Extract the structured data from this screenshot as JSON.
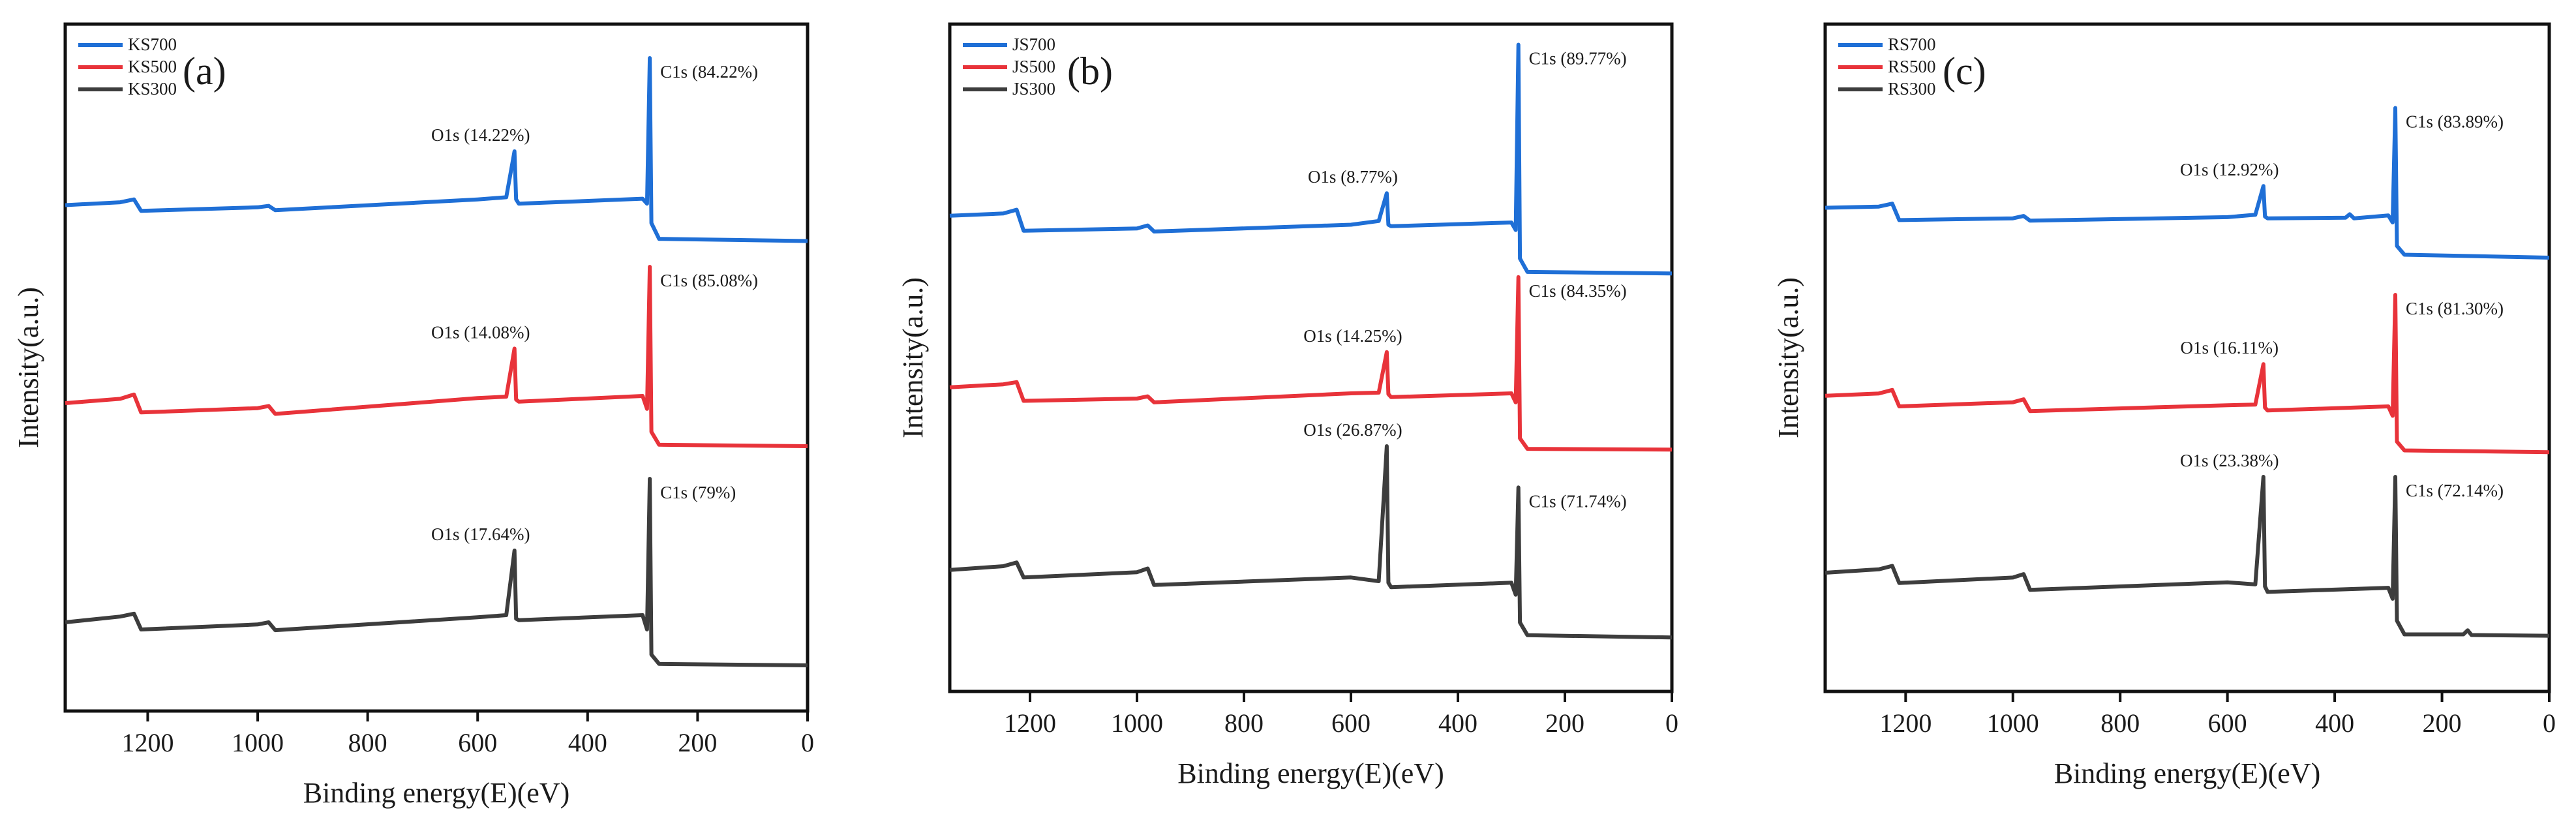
{
  "chart_data": [
    {
      "type": "line",
      "panel_label": "(a)",
      "xlabel": "Binding energy(E)(eV)",
      "ylabel": "Intensity(a.u.)",
      "xlim": [
        1350,
        0
      ],
      "x_ticks": [
        1200,
        1000,
        800,
        600,
        400,
        200,
        0
      ],
      "x_tick_labels": [
        "1200",
        "1000",
        "800",
        "600",
        "400",
        "200",
        "0"
      ],
      "y_axis_units": "arbitrary (stacked, offset curves)",
      "legend_position": "top-left",
      "series": [
        {
          "name": "KS700",
          "color": "#1f6fd6",
          "points": [
            [
              1350,
              0.55
            ],
            [
              1250,
              0.59
            ],
            [
              1225,
              0.63
            ],
            [
              1212,
              0.47
            ],
            [
              1000,
              0.52
            ],
            [
              980,
              0.54
            ],
            [
              968,
              0.48
            ],
            [
              600,
              0.63
            ],
            [
              548,
              0.66
            ],
            [
              533,
              1.3
            ],
            [
              530,
              0.63
            ],
            [
              525,
              0.57
            ],
            [
              300,
              0.64
            ],
            [
              292,
              0.57
            ],
            [
              287,
              2.6
            ],
            [
              284,
              0.3
            ],
            [
              270,
              0.08
            ],
            [
              0,
              0.05
            ]
          ],
          "annotations": [
            {
              "text": "O1s (14.22%)",
              "x": 533
            },
            {
              "text": "C1s (84.22%)",
              "x": 287
            }
          ]
        },
        {
          "name": "KS500",
          "color": "#e8333a",
          "points": [
            [
              1350,
              0.7
            ],
            [
              1250,
              0.76
            ],
            [
              1225,
              0.82
            ],
            [
              1212,
              0.57
            ],
            [
              1000,
              0.63
            ],
            [
              980,
              0.66
            ],
            [
              968,
              0.55
            ],
            [
              600,
              0.77
            ],
            [
              548,
              0.79
            ],
            [
              533,
              1.46
            ],
            [
              530,
              0.75
            ],
            [
              525,
              0.72
            ],
            [
              300,
              0.8
            ],
            [
              292,
              0.62
            ],
            [
              287,
              2.6
            ],
            [
              284,
              0.3
            ],
            [
              270,
              0.12
            ],
            [
              0,
              0.1
            ]
          ],
          "annotations": [
            {
              "text": "O1s (14.08%)",
              "x": 533
            },
            {
              "text": "C1s (85.08%)",
              "x": 287
            }
          ]
        },
        {
          "name": "KS300",
          "color": "#3d3d3d",
          "points": [
            [
              1350,
              0.6
            ],
            [
              1250,
              0.68
            ],
            [
              1225,
              0.72
            ],
            [
              1212,
              0.5
            ],
            [
              1000,
              0.57
            ],
            [
              980,
              0.6
            ],
            [
              968,
              0.49
            ],
            [
              600,
              0.67
            ],
            [
              548,
              0.7
            ],
            [
              533,
              1.6
            ],
            [
              530,
              0.65
            ],
            [
              525,
              0.63
            ],
            [
              300,
              0.7
            ],
            [
              292,
              0.5
            ],
            [
              287,
              2.6
            ],
            [
              284,
              0.15
            ],
            [
              270,
              0.02
            ],
            [
              0,
              0.0
            ]
          ],
          "annotations": [
            {
              "text": "O1s (17.64%)",
              "x": 533
            },
            {
              "text": "C1s (79%)",
              "x": 287
            }
          ]
        }
      ]
    },
    {
      "type": "line",
      "panel_label": "(b)",
      "xlabel": "Binding energy(E)(eV)",
      "ylabel": "Intensity(a.u.)",
      "xlim": [
        1350,
        0
      ],
      "x_ticks": [
        1200,
        1000,
        800,
        600,
        400,
        200,
        0
      ],
      "x_tick_labels": [
        "1200",
        "1000",
        "800",
        "600",
        "400",
        "200",
        "0"
      ],
      "y_axis_units": "arbitrary (stacked, offset curves)",
      "legend_position": "top-left",
      "series": [
        {
          "name": "JS700",
          "color": "#1f6fd6",
          "points": [
            [
              1350,
              0.82
            ],
            [
              1250,
              0.85
            ],
            [
              1225,
              0.9
            ],
            [
              1212,
              0.62
            ],
            [
              1000,
              0.65
            ],
            [
              980,
              0.69
            ],
            [
              968,
              0.61
            ],
            [
              600,
              0.7
            ],
            [
              548,
              0.75
            ],
            [
              533,
              1.12
            ],
            [
              530,
              0.7
            ],
            [
              525,
              0.68
            ],
            [
              300,
              0.73
            ],
            [
              292,
              0.63
            ],
            [
              287,
              3.1
            ],
            [
              284,
              0.25
            ],
            [
              270,
              0.07
            ],
            [
              0,
              0.05
            ]
          ],
          "annotations": [
            {
              "text": "O1s (8.77%)",
              "x": 533
            },
            {
              "text": "C1s (89.77%)",
              "x": 287
            }
          ]
        },
        {
          "name": "JS500",
          "color": "#e8333a",
          "points": [
            [
              1350,
              0.88
            ],
            [
              1250,
              0.92
            ],
            [
              1225,
              0.95
            ],
            [
              1212,
              0.7
            ],
            [
              1000,
              0.73
            ],
            [
              980,
              0.76
            ],
            [
              968,
              0.68
            ],
            [
              600,
              0.8
            ],
            [
              548,
              0.81
            ],
            [
              533,
              1.35
            ],
            [
              530,
              0.79
            ],
            [
              525,
              0.75
            ],
            [
              300,
              0.8
            ],
            [
              292,
              0.68
            ],
            [
              287,
              2.35
            ],
            [
              284,
              0.2
            ],
            [
              270,
              0.06
            ],
            [
              0,
              0.05
            ]
          ],
          "annotations": [
            {
              "text": "O1s (14.25%)",
              "x": 533
            },
            {
              "text": "C1s (84.35%)",
              "x": 287
            }
          ]
        },
        {
          "name": "JS300",
          "color": "#3d3d3d",
          "points": [
            [
              1350,
              0.95
            ],
            [
              1250,
              1.0
            ],
            [
              1225,
              1.05
            ],
            [
              1212,
              0.85
            ],
            [
              1000,
              0.92
            ],
            [
              980,
              0.97
            ],
            [
              968,
              0.75
            ],
            [
              600,
              0.85
            ],
            [
              548,
              0.8
            ],
            [
              533,
              2.6
            ],
            [
              530,
              0.78
            ],
            [
              525,
              0.72
            ],
            [
              300,
              0.78
            ],
            [
              292,
              0.62
            ],
            [
              287,
              2.05
            ],
            [
              284,
              0.25
            ],
            [
              270,
              0.08
            ],
            [
              0,
              0.05
            ]
          ],
          "annotations": [
            {
              "text": "O1s (26.87%)",
              "x": 533
            },
            {
              "text": "C1s (71.74%)",
              "x": 287
            }
          ]
        }
      ]
    },
    {
      "type": "line",
      "panel_label": "(c)",
      "xlabel": "Binding energy(E)(eV)",
      "ylabel": "Intensity(a.u.)",
      "xlim": [
        1350,
        0
      ],
      "x_ticks": [
        1200,
        1000,
        800,
        600,
        400,
        200,
        0
      ],
      "x_tick_labels": [
        "1200",
        "1000",
        "800",
        "600",
        "400",
        "200",
        "0"
      ],
      "y_axis_units": "arbitrary (stacked, offset curves)",
      "legend_position": "top-left",
      "series": [
        {
          "name": "RS700",
          "color": "#1f6fd6",
          "points": [
            [
              1350,
              0.85
            ],
            [
              1250,
              0.87
            ],
            [
              1225,
              0.92
            ],
            [
              1212,
              0.64
            ],
            [
              1000,
              0.67
            ],
            [
              980,
              0.71
            ],
            [
              968,
              0.63
            ],
            [
              600,
              0.69
            ],
            [
              548,
              0.73
            ],
            [
              533,
              1.22
            ],
            [
              530,
              0.7
            ],
            [
              525,
              0.67
            ],
            [
              380,
              0.68
            ],
            [
              372,
              0.74
            ],
            [
              364,
              0.67
            ],
            [
              300,
              0.72
            ],
            [
              292,
              0.6
            ],
            [
              287,
              2.55
            ],
            [
              284,
              0.2
            ],
            [
              270,
              0.05
            ],
            [
              0,
              0.0
            ]
          ],
          "annotations": [
            {
              "text": "O1s (12.92%)",
              "x": 533
            },
            {
              "text": "C1s (83.89%)",
              "x": 287
            }
          ]
        },
        {
          "name": "RS500",
          "color": "#e8333a",
          "points": [
            [
              1350,
              0.98
            ],
            [
              1250,
              1.02
            ],
            [
              1225,
              1.08
            ],
            [
              1212,
              0.8
            ],
            [
              1000,
              0.87
            ],
            [
              980,
              0.92
            ],
            [
              968,
              0.72
            ],
            [
              600,
              0.82
            ],
            [
              548,
              0.83
            ],
            [
              533,
              1.52
            ],
            [
              530,
              0.78
            ],
            [
              525,
              0.73
            ],
            [
              300,
              0.8
            ],
            [
              292,
              0.64
            ],
            [
              287,
              2.7
            ],
            [
              284,
              0.2
            ],
            [
              270,
              0.05
            ],
            [
              0,
              0.02
            ]
          ],
          "annotations": [
            {
              "text": "O1s (16.11%)",
              "x": 533
            },
            {
              "text": "C1s (81.30%)",
              "x": 287
            }
          ]
        },
        {
          "name": "RS300",
          "color": "#3d3d3d",
          "points": [
            [
              1350,
              1.0
            ],
            [
              1250,
              1.05
            ],
            [
              1225,
              1.1
            ],
            [
              1212,
              0.85
            ],
            [
              1000,
              0.93
            ],
            [
              980,
              0.98
            ],
            [
              968,
              0.75
            ],
            [
              600,
              0.86
            ],
            [
              548,
              0.83
            ],
            [
              533,
              2.4
            ],
            [
              530,
              0.8
            ],
            [
              525,
              0.72
            ],
            [
              300,
              0.78
            ],
            [
              292,
              0.62
            ],
            [
              287,
              2.4
            ],
            [
              284,
              0.3
            ],
            [
              270,
              0.1
            ],
            [
              160,
              0.1
            ],
            [
              152,
              0.16
            ],
            [
              145,
              0.09
            ],
            [
              0,
              0.08
            ]
          ],
          "annotations": [
            {
              "text": "O1s (23.38%)",
              "x": 533
            },
            {
              "text": "C1s (72.14%)",
              "x": 287
            }
          ]
        }
      ]
    }
  ]
}
